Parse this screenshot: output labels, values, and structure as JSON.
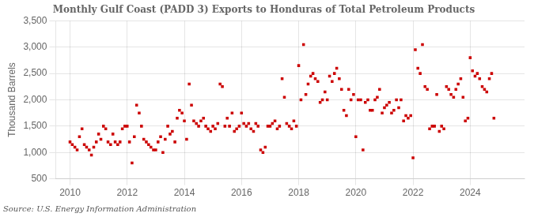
{
  "chart_data": {
    "type": "scatter",
    "title": "Monthly Gulf Coast (PADD 3) Exports to Honduras of Total Petroleum Products",
    "ylabel": "Thousand Barrels",
    "annotation": "Source: U.S. Energy Information Administration",
    "color": "#cc0000",
    "marker": "square",
    "grid": true,
    "xlim": [
      2009.5,
      2025.9
    ],
    "xticks": [
      2010,
      2012,
      2014,
      2016,
      2018,
      2020,
      2022,
      2024
    ],
    "ylim": [
      500,
      3500
    ],
    "yticks": [
      500,
      {
        "value": 1000,
        "label": "1,000"
      },
      {
        "value": 1500,
        "label": "1,500"
      },
      {
        "value": 2000,
        "label": "2,000"
      },
      {
        "value": 2500,
        "label": "2,500"
      },
      {
        "value": 3000,
        "label": "3,000"
      },
      {
        "value": 3500,
        "label": "3,500"
      }
    ],
    "x": [
      2010.0,
      2010.08,
      2010.17,
      2010.25,
      2010.33,
      2010.42,
      2010.5,
      2010.58,
      2010.67,
      2010.75,
      2010.83,
      2010.92,
      2011.0,
      2011.08,
      2011.17,
      2011.25,
      2011.33,
      2011.42,
      2011.5,
      2011.58,
      2011.67,
      2011.75,
      2011.83,
      2011.92,
      2012.0,
      2012.08,
      2012.17,
      2012.25,
      2012.33,
      2012.42,
      2012.5,
      2012.58,
      2012.67,
      2012.75,
      2012.83,
      2012.92,
      2013.0,
      2013.08,
      2013.17,
      2013.25,
      2013.33,
      2013.42,
      2013.5,
      2013.58,
      2013.67,
      2013.75,
      2013.83,
      2013.92,
      2014.0,
      2014.08,
      2014.17,
      2014.25,
      2014.33,
      2014.42,
      2014.5,
      2014.58,
      2014.67,
      2014.75,
      2014.83,
      2014.92,
      2015.0,
      2015.08,
      2015.17,
      2015.25,
      2015.33,
      2015.42,
      2015.5,
      2015.58,
      2015.67,
      2015.75,
      2015.83,
      2015.92,
      2016.0,
      2016.08,
      2016.17,
      2016.25,
      2016.33,
      2016.42,
      2016.5,
      2016.58,
      2016.67,
      2016.75,
      2016.83,
      2016.92,
      2017.0,
      2017.08,
      2017.17,
      2017.25,
      2017.33,
      2017.42,
      2017.5,
      2017.58,
      2017.67,
      2017.75,
      2017.83,
      2017.92,
      2018.0,
      2018.08,
      2018.17,
      2018.25,
      2018.33,
      2018.42,
      2018.5,
      2018.58,
      2018.67,
      2018.75,
      2018.83,
      2018.92,
      2019.0,
      2019.08,
      2019.17,
      2019.25,
      2019.33,
      2019.42,
      2019.5,
      2019.58,
      2019.67,
      2019.75,
      2019.83,
      2019.92,
      2020.0,
      2020.08,
      2020.17,
      2020.25,
      2020.33,
      2020.42,
      2020.5,
      2020.58,
      2020.67,
      2020.75,
      2020.83,
      2020.92,
      2021.0,
      2021.08,
      2021.17,
      2021.25,
      2021.33,
      2021.42,
      2021.5,
      2021.58,
      2021.67,
      2021.75,
      2021.83,
      2021.92,
      2022.0,
      2022.08,
      2022.17,
      2022.25,
      2022.33,
      2022.42,
      2022.5,
      2022.58,
      2022.67,
      2022.75,
      2022.83,
      2022.92,
      2023.0,
      2023.08,
      2023.17,
      2023.25,
      2023.33,
      2023.42,
      2023.5,
      2023.58,
      2023.67,
      2023.75,
      2023.83,
      2023.92,
      2024.0,
      2024.08,
      2024.17,
      2024.25,
      2024.33,
      2024.42,
      2024.5,
      2024.58,
      2024.67,
      2024.75,
      2024.83
    ],
    "values": [
      1200,
      1150,
      1100,
      1050,
      1300,
      1450,
      1150,
      1100,
      1050,
      950,
      1100,
      1200,
      1350,
      1250,
      1500,
      1450,
      1200,
      1150,
      1350,
      1200,
      1150,
      1200,
      1450,
      1500,
      1500,
      1200,
      800,
      1300,
      1900,
      1750,
      1500,
      1250,
      1200,
      1150,
      1100,
      1050,
      1050,
      1200,
      1300,
      1000,
      1250,
      1500,
      1350,
      1400,
      1200,
      1650,
      1800,
      1750,
      1600,
      1250,
      2300,
      1900,
      1600,
      1550,
      1500,
      1600,
      1650,
      1500,
      1450,
      1400,
      1500,
      1450,
      1550,
      2300,
      2250,
      1500,
      1650,
      1500,
      1750,
      1400,
      1450,
      1500,
      1750,
      1550,
      1500,
      1550,
      1450,
      1400,
      1550,
      1500,
      1050,
      1000,
      1100,
      1500,
      1500,
      1550,
      1600,
      1450,
      1500,
      2400,
      2050,
      1550,
      1500,
      1450,
      1600,
      1500,
      2650,
      2000,
      3050,
      2100,
      2300,
      2450,
      2500,
      2400,
      2350,
      1950,
      2000,
      2150,
      2000,
      2450,
      2350,
      2500,
      2600,
      2400,
      2200,
      1800,
      1700,
      2200,
      2000,
      2100,
      1300,
      2000,
      2000,
      1050,
      1950,
      2000,
      1800,
      1800,
      2000,
      2050,
      2200,
      1750,
      1850,
      1900,
      1950,
      1750,
      1800,
      2000,
      1850,
      2000,
      1600,
      1700,
      1650,
      1700,
      900,
      2950,
      2600,
      2500,
      3050,
      2250,
      2200,
      1450,
      1500,
      1500,
      2100,
      1400,
      1500,
      1450,
      2250,
      2200,
      2100,
      2050,
      2200,
      2300,
      2400,
      2050,
      1600,
      1650,
      2800,
      2550,
      2450,
      2500,
      2400,
      2250,
      2200,
      2150,
      2400,
      2500,
      1650
    ]
  }
}
